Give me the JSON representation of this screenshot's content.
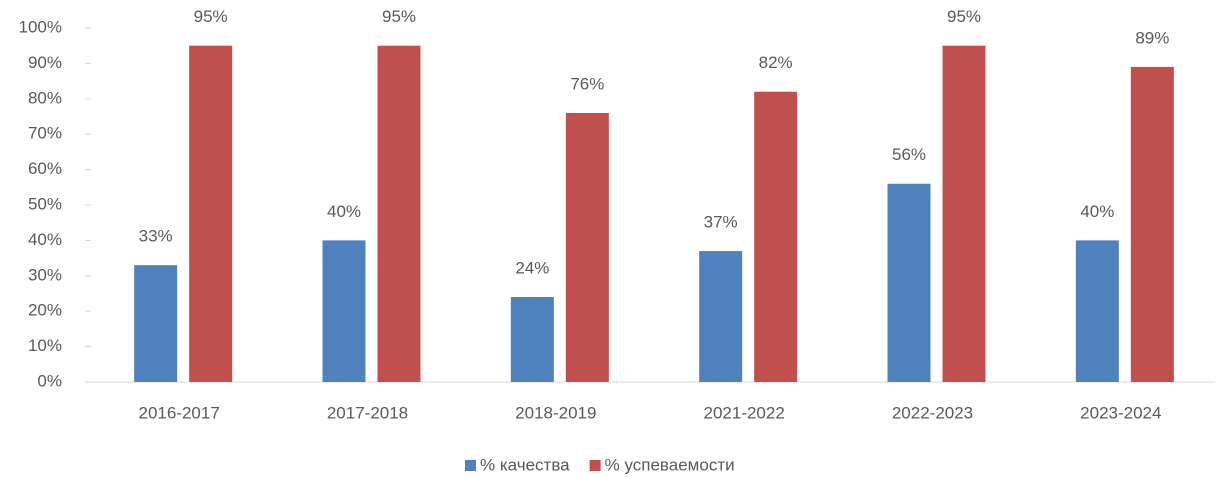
{
  "chart_data": {
    "type": "bar",
    "categories": [
      "2016-2017",
      "2017-2018",
      "2018-2019",
      "2021-2022",
      "2022-2023",
      "2023-2024"
    ],
    "series": [
      {
        "name": "% качества",
        "color": "#4f81bd",
        "values": [
          33,
          40,
          24,
          37,
          56,
          40
        ],
        "value_labels": [
          "33%",
          "40%",
          "24%",
          "37%",
          "56%",
          "40%"
        ]
      },
      {
        "name": "% успеваемости",
        "color": "#c0504d",
        "values": [
          95,
          95,
          76,
          82,
          95,
          89
        ],
        "value_labels": [
          "95%",
          "95%",
          "76%",
          "82%",
          "95%",
          "89%"
        ]
      }
    ],
    "ylim": [
      0,
      100
    ],
    "yticks": [
      {
        "value": 0,
        "label": "0%"
      },
      {
        "value": 10,
        "label": "10%"
      },
      {
        "value": 20,
        "label": "20%"
      },
      {
        "value": 30,
        "label": "30%"
      },
      {
        "value": 40,
        "label": "40%"
      },
      {
        "value": 50,
        "label": "50%"
      },
      {
        "value": 60,
        "label": "60%"
      },
      {
        "value": 70,
        "label": "70%"
      },
      {
        "value": 80,
        "label": "80%"
      },
      {
        "value": 90,
        "label": "90%"
      },
      {
        "value": 100,
        "label": "100%"
      }
    ],
    "grid": false,
    "legend": "bottom"
  }
}
